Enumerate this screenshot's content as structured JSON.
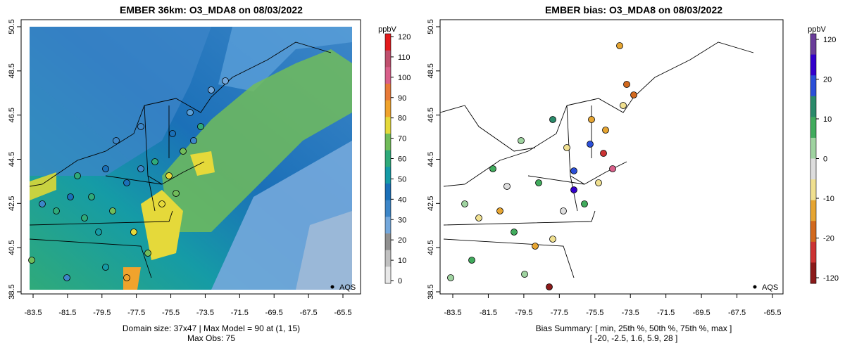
{
  "left_panel": {
    "title": "EMBER 36km: O3_MDA8 on 08/03/2022",
    "colorbar_unit": "ppbV",
    "colorbar_ticks": [
      "0",
      "10",
      "20",
      "30",
      "40",
      "50",
      "60",
      "70",
      "80",
      "90",
      "100",
      "110",
      "120"
    ],
    "colorbar_colors": [
      "#e8e8e8",
      "#c0c0c0",
      "#909090",
      "#74a8dc",
      "#3d86c8",
      "#1b70b8",
      "#159ba6",
      "#2faa7a",
      "#71bc5a",
      "#e5d93a",
      "#f0a32c",
      "#e87a38",
      "#d9608a",
      "#c0506e",
      "#e31a1c"
    ],
    "legend_label": "AQS",
    "caption_line1": "Domain size: 37x47 | Max Model = 90 at (1, 15)",
    "caption_line2": "Max Obs: 75"
  },
  "right_panel": {
    "title": "EMBER bias: O3_MDA8 on 08/03/2022",
    "colorbar_unit": "ppbV",
    "colorbar_ticks": [
      "120",
      "20",
      "10",
      "0",
      "-10",
      "-20",
      "-120"
    ],
    "colorbar_colors": [
      "#8b1a1a",
      "#cc3333",
      "#d2691e",
      "#e6a532",
      "#f0e090",
      "#dddddd",
      "#9fd3a0",
      "#41ab5d",
      "#2a8a6a",
      "#2b4fd8",
      "#3300cc",
      "#6a3d9a"
    ],
    "legend_label": "AQS",
    "caption_line1": "Bias Summary: [ min, 25th %, 50th %, 75th %, max ]",
    "caption_line2": "[ -20,   -2.5,   1.6,   5.9,   28 ]"
  },
  "axes": {
    "x_ticks": [
      "-83.5",
      "-81.5",
      "-79.5",
      "-77.5",
      "-75.5",
      "-73.5",
      "-71.5",
      "-69.5",
      "-67.5",
      "-65.5"
    ],
    "y_ticks": [
      "38.5",
      "40.5",
      "42.5",
      "44.5",
      "46.5",
      "48.5",
      "50.5"
    ]
  }
}
